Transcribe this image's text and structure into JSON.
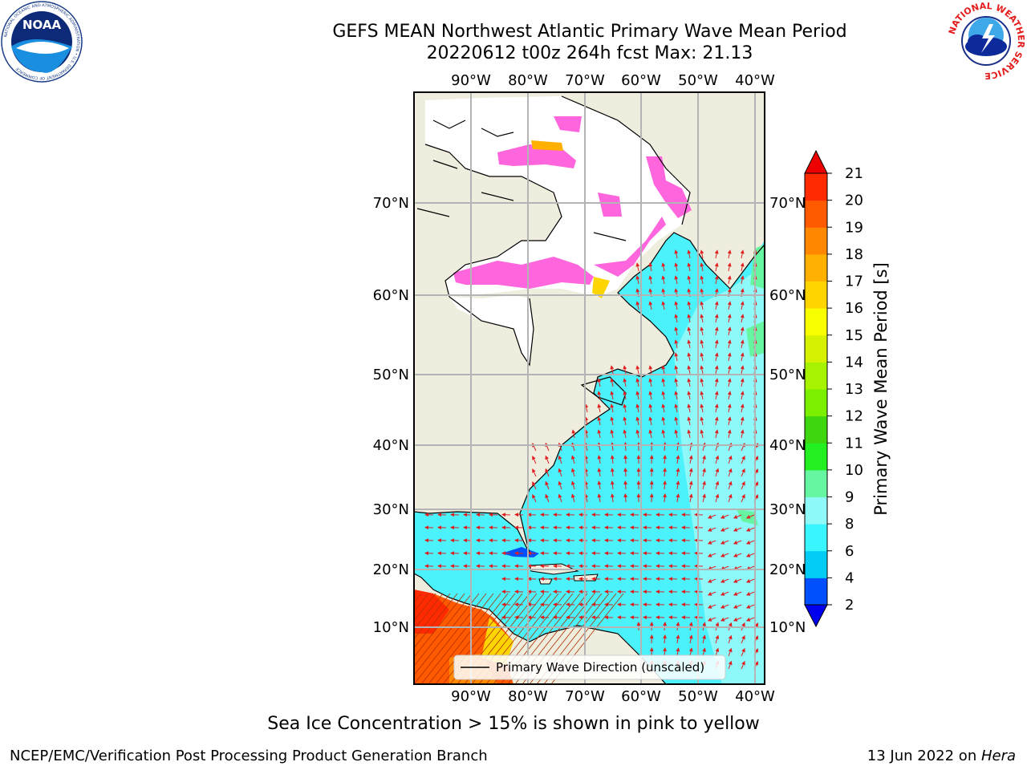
{
  "header": {
    "title_line1": "GEFS MEAN Northwest Atlantic Primary Wave Mean Period",
    "title_line2": "20220612 t00z 264h fcst   Max: 21.13"
  },
  "logos": {
    "left": "NOAA",
    "left_ring_text": "NATIONAL OCEANIC AND ATMOSPHERIC ADMINISTRATION • U.S. DEPARTMENT OF COMMERCE",
    "right_ring_text": "NATIONAL WEATHER SERVICE"
  },
  "map": {
    "lon_ticks": [
      "90°W",
      "80°W",
      "70°W",
      "60°W",
      "50°W",
      "40°W"
    ],
    "lat_ticks": [
      "70°N",
      "60°N",
      "50°N",
      "40°N",
      "30°N",
      "20°N",
      "10°N"
    ],
    "legend_label": "Primary Wave Direction (unscaled)",
    "colors": {
      "land": "#efedde",
      "ocean_period_6_8": "#4bf2fb",
      "ocean_period_8_9": "#8ff9f9",
      "ocean_period_18_21": "#ff5a00",
      "sea_ice": "#ff66dd",
      "direction_arrows": "#e02020"
    }
  },
  "colorbar": {
    "title": "Primary Wave Mean Period [s]",
    "ticks": [
      "2",
      "4",
      "6",
      "8",
      "9",
      "10",
      "11",
      "12",
      "13",
      "14",
      "15",
      "16",
      "17",
      "18",
      "19",
      "20",
      "21"
    ],
    "colors": [
      "#0050ff",
      "#00ccf5",
      "#38f5ff",
      "#8ff9f9",
      "#66f5a0",
      "#22f020",
      "#3dd60f",
      "#7af000",
      "#a6f200",
      "#d6f200",
      "#faff00",
      "#ffd500",
      "#ffb000",
      "#ff8800",
      "#ff5a00",
      "#ff2a00"
    ],
    "under_color": "#0000ee",
    "over_color": "#ee0000"
  },
  "footnote": "Sea Ice Concentration > 15% is shown in pink to yellow",
  "footer": {
    "left": "NCEP/EMC/Verification Post Processing Product Generation Branch",
    "right_prefix": "13 Jun 2022 on ",
    "right_host": "Hera"
  }
}
